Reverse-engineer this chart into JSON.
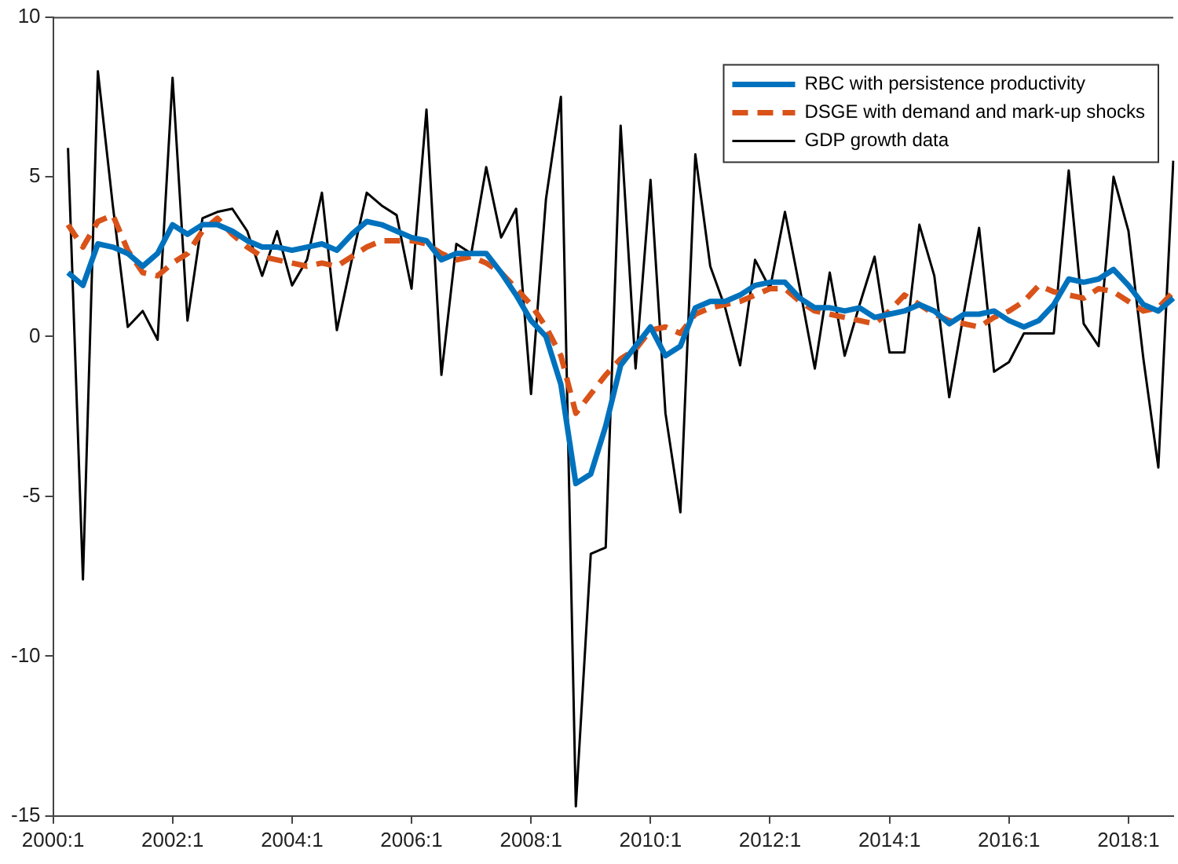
{
  "chart_data": {
    "type": "line",
    "categories": [
      "2000:1",
      null,
      null,
      null,
      null,
      null,
      null,
      null,
      "2002:1",
      null,
      null,
      null,
      null,
      null,
      null,
      null,
      "2004:1",
      null,
      null,
      null,
      null,
      null,
      null,
      null,
      "2006:1",
      null,
      null,
      null,
      null,
      null,
      null,
      null,
      "2008:1",
      null,
      null,
      null,
      null,
      null,
      null,
      null,
      "2010:1",
      null,
      null,
      null,
      null,
      null,
      null,
      null,
      "2012:1",
      null,
      null,
      null,
      null,
      null,
      null,
      null,
      "2014:1",
      null,
      null,
      null,
      null,
      null,
      null,
      null,
      "2016:1",
      null,
      null,
      null,
      null,
      null,
      null,
      null,
      "2018:1",
      null,
      null,
      null
    ],
    "series": [
      {
        "name": "RBC with persistence productivity",
        "color": "#0072bd",
        "line_style": "solid",
        "values": [
          null,
          2.0,
          1.6,
          2.9,
          2.8,
          2.6,
          2.2,
          2.6,
          3.5,
          3.2,
          3.5,
          3.5,
          3.3,
          3.0,
          2.8,
          2.8,
          2.7,
          2.8,
          2.9,
          2.7,
          3.2,
          3.6,
          3.5,
          3.3,
          3.1,
          3.0,
          2.4,
          2.6,
          2.6,
          2.6,
          2.0,
          1.3,
          0.5,
          0.0,
          -1.5,
          -4.6,
          -4.3,
          -2.8,
          -0.9,
          -0.3,
          0.3,
          -0.6,
          -0.3,
          0.9,
          1.1,
          1.1,
          1.3,
          1.6,
          1.7,
          1.7,
          1.2,
          0.9,
          0.9,
          0.8,
          0.9,
          0.6,
          0.7,
          0.8,
          1.0,
          0.8,
          0.4,
          0.7,
          0.7,
          0.8,
          0.5,
          0.3,
          0.5,
          1.0,
          1.8,
          1.7,
          1.8,
          2.1,
          1.6,
          1.0,
          0.8,
          1.2
        ]
      },
      {
        "name": "DSGE with demand and mark-up shocks",
        "color": "#d95319",
        "line_style": "dashed",
        "values": [
          null,
          3.5,
          2.8,
          3.6,
          3.8,
          2.7,
          2.0,
          1.9,
          2.3,
          2.6,
          3.3,
          3.7,
          3.2,
          2.8,
          2.5,
          2.4,
          2.3,
          2.2,
          2.3,
          2.2,
          2.5,
          2.8,
          3.0,
          3.0,
          3.0,
          2.9,
          2.6,
          2.4,
          2.5,
          2.3,
          2.0,
          1.5,
          1.0,
          0.3,
          -0.6,
          -2.4,
          -1.8,
          -1.2,
          -0.7,
          -0.4,
          0.2,
          0.3,
          0.1,
          0.7,
          0.9,
          1.0,
          1.1,
          1.3,
          1.5,
          1.5,
          1.1,
          0.8,
          0.7,
          0.6,
          0.5,
          0.4,
          0.8,
          1.3,
          1.0,
          0.7,
          0.5,
          0.4,
          0.3,
          0.6,
          0.8,
          1.1,
          1.6,
          1.4,
          1.3,
          1.2,
          1.5,
          1.4,
          1.1,
          0.8,
          0.9,
          1.4
        ]
      },
      {
        "name": "GDP growth data",
        "color": "#000000",
        "line_style": "solid",
        "values": [
          null,
          5.9,
          -7.6,
          8.3,
          4.1,
          0.3,
          0.8,
          -0.1,
          8.1,
          0.5,
          3.7,
          3.9,
          4.0,
          3.3,
          1.9,
          3.3,
          1.6,
          2.4,
          4.5,
          0.2,
          2.4,
          4.5,
          4.1,
          3.8,
          1.5,
          7.1,
          -1.2,
          2.9,
          2.6,
          5.3,
          3.1,
          4.0,
          -1.8,
          4.3,
          7.5,
          -14.7,
          -6.8,
          -6.6,
          6.6,
          -1.0,
          4.9,
          -2.4,
          -5.5,
          5.7,
          2.2,
          0.9,
          -0.9,
          2.4,
          1.5,
          3.9,
          1.5,
          -1.0,
          2.0,
          -0.6,
          1.0,
          2.5,
          -0.5,
          -0.5,
          3.5,
          1.9,
          -1.9,
          0.8,
          3.4,
          -1.1,
          -0.8,
          0.1,
          0.1,
          0.1,
          5.2,
          0.4,
          -0.3,
          5.0,
          3.3,
          -0.7,
          -4.1,
          5.5
        ]
      }
    ],
    "ylim": [
      -15,
      10
    ],
    "yticks": [
      -15,
      -10,
      -5,
      0,
      5,
      10
    ],
    "legend": "top right",
    "marker": "none"
  }
}
